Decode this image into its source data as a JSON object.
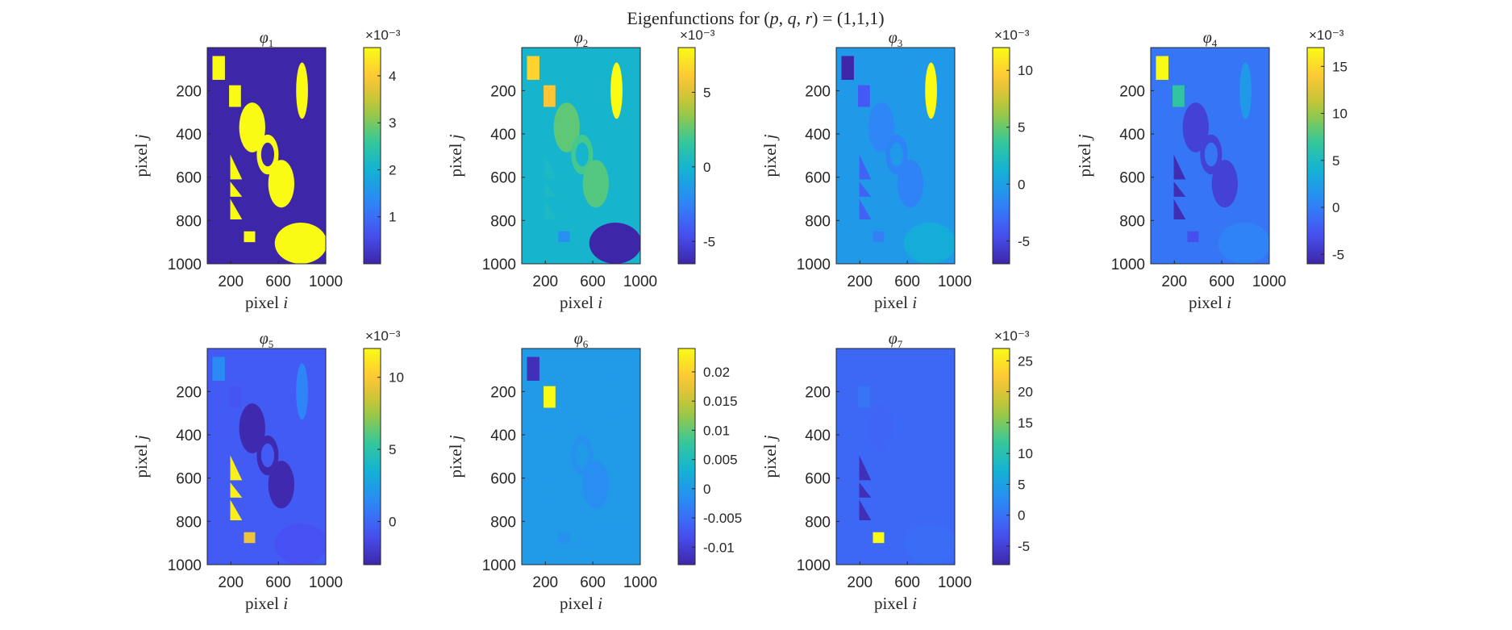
{
  "figure": {
    "title": "Eigenfunctions for (p, q, r) = (1,1,1)",
    "title_parts": [
      "Eigenfunctions for ",
      "p",
      ", ",
      "q",
      ", ",
      "r",
      ") = (1,1,1)"
    ]
  },
  "chart_data": [
    {
      "type": "heatmap",
      "title": "φ₁",
      "title_base": "φ",
      "title_sub": "1",
      "xlabel": "pixel i",
      "ylabel": "pixel j",
      "xticks": [
        "200",
        "600",
        "1000"
      ],
      "yticks": [
        "200",
        "400",
        "600",
        "800",
        "1000"
      ],
      "xlim": [
        1,
        1000
      ],
      "ylim": [
        1,
        1000
      ],
      "y_reversed": true,
      "colorbar": {
        "exponent": "×10⁻³",
        "range": [
          0.0,
          4.6
        ],
        "ticks": [
          1,
          2,
          3,
          4
        ],
        "tick_labels": [
          "1",
          "2",
          "3",
          "4"
        ]
      },
      "regions": {
        "background": 0.0,
        "rect1": 4.6,
        "rect2": 4.6,
        "ellipse_top": 4.6,
        "ellipse_big": 4.6,
        "ring": 4.6,
        "ring_hole": 0.0,
        "ellipse_mid": 4.6,
        "triangles": 4.6,
        "small_rect": 4.6,
        "ellipse_bottom": 4.6
      }
    },
    {
      "type": "heatmap",
      "title": "φ₂",
      "title_base": "φ",
      "title_sub": "2",
      "xlabel": "pixel i",
      "ylabel": "pixel j",
      "xticks": [
        "200",
        "600",
        "1000"
      ],
      "yticks": [
        "200",
        "400",
        "600",
        "800",
        "1000"
      ],
      "xlim": [
        1,
        1000
      ],
      "ylim": [
        1,
        1000
      ],
      "y_reversed": true,
      "colorbar": {
        "exponent": "×10⁻³",
        "range": [
          -6.5,
          8.0
        ],
        "ticks": [
          -5,
          0,
          5
        ],
        "tick_labels": [
          "-5",
          "0",
          "5"
        ]
      },
      "regions": {
        "background": 0.0,
        "rect1": 6.5,
        "rect2": 6.0,
        "ellipse_top": 8.0,
        "ellipse_big": 2.5,
        "ring": 2.0,
        "ring_hole": 0.0,
        "ellipse_mid": 2.3,
        "triangles": 0.3,
        "small_rect": -2.0,
        "ellipse_bottom": -6.5
      }
    },
    {
      "type": "heatmap",
      "title": "φ₃",
      "title_base": "φ",
      "title_sub": "3",
      "xlabel": "pixel i",
      "ylabel": "pixel j",
      "xticks": [
        "200",
        "600",
        "1000"
      ],
      "yticks": [
        "200",
        "400",
        "600",
        "800",
        "1000"
      ],
      "xlim": [
        1,
        1000
      ],
      "ylim": [
        1,
        1000
      ],
      "y_reversed": true,
      "colorbar": {
        "exponent": "×10⁻³",
        "range": [
          -7.0,
          12.0
        ],
        "ticks": [
          -5,
          0,
          5,
          10
        ],
        "tick_labels": [
          "-5",
          "0",
          "5",
          "10"
        ]
      },
      "regions": {
        "background": -0.4,
        "rect1": -7.0,
        "rect2": -4.0,
        "ellipse_top": 12.0,
        "ellipse_big": -1.6,
        "ring": -1.8,
        "ring_hole": -0.4,
        "ellipse_mid": -1.8,
        "triangles": -3.5,
        "small_rect": -2.0,
        "ellipse_bottom": 0.8
      }
    },
    {
      "type": "heatmap",
      "title": "φ₄",
      "title_base": "φ",
      "title_sub": "4",
      "xlabel": "pixel i",
      "ylabel": "pixel j",
      "xticks": [
        "200",
        "600",
        "1000"
      ],
      "yticks": [
        "200",
        "400",
        "600",
        "800",
        "1000"
      ],
      "xlim": [
        1,
        1000
      ],
      "ylim": [
        1,
        1000
      ],
      "y_reversed": true,
      "colorbar": {
        "exponent": "×10⁻³",
        "range": [
          -6.0,
          17.0
        ],
        "ticks": [
          -5,
          0,
          5,
          10,
          15
        ],
        "tick_labels": [
          "-5",
          "0",
          "5",
          "10",
          "15"
        ]
      },
      "regions": {
        "background": -0.5,
        "rect1": 17.0,
        "rect2": 6.5,
        "ellipse_top": 2.0,
        "ellipse_big": -4.0,
        "ring": -4.0,
        "ring_hole": -0.5,
        "ellipse_mid": -4.0,
        "triangles": -5.5,
        "small_rect": -3.0,
        "ellipse_bottom": 0.3
      }
    },
    {
      "type": "heatmap",
      "title": "φ₅",
      "title_base": "φ",
      "title_sub": "5",
      "xlabel": "pixel i",
      "ylabel": "pixel j",
      "xticks": [
        "200",
        "600",
        "1000"
      ],
      "yticks": [
        "200",
        "400",
        "600",
        "800",
        "1000"
      ],
      "xlim": [
        1,
        1000
      ],
      "ylim": [
        1,
        1000
      ],
      "y_reversed": true,
      "colorbar": {
        "exponent": "×10⁻³",
        "range": [
          -3.0,
          12.0
        ],
        "ticks": [
          0,
          5,
          10
        ],
        "tick_labels": [
          "0",
          "5",
          "10"
        ]
      },
      "regions": {
        "background": -0.5,
        "rect1": 1.5,
        "rect2": -0.8,
        "ellipse_top": 1.2,
        "ellipse_big": -2.8,
        "ring": -2.8,
        "ring_hole": -0.5,
        "ellipse_mid": -2.8,
        "triangles": 11.5,
        "small_rect": 9.5,
        "ellipse_bottom": -0.9
      }
    },
    {
      "type": "heatmap",
      "title": "φ₆",
      "title_base": "φ",
      "title_sub": "6",
      "xlabel": "pixel i",
      "ylabel": "pixel j",
      "xticks": [
        "200",
        "600",
        "1000"
      ],
      "yticks": [
        "200",
        "400",
        "600",
        "800",
        "1000"
      ],
      "xlim": [
        1,
        1000
      ],
      "ylim": [
        1,
        1000
      ],
      "y_reversed": true,
      "colorbar": {
        "exponent": "",
        "range": [
          -0.013,
          0.024
        ],
        "ticks": [
          -0.01,
          -0.005,
          0,
          0.005,
          0.01,
          0.015,
          0.02
        ],
        "tick_labels": [
          "-0.01",
          "-0.005",
          "0",
          "0.005",
          "0.01",
          "0.015",
          "0.02"
        ]
      },
      "regions": {
        "background": 0.0,
        "rect1": -0.012,
        "rect2": 0.024,
        "ellipse_top": 0.0,
        "ellipse_big": 0.0,
        "ring": -0.001,
        "ring_hole": 0.0,
        "ellipse_mid": -0.0015,
        "triangles": 0.0,
        "small_rect": -0.001,
        "ellipse_bottom": 0.0
      }
    },
    {
      "type": "heatmap",
      "title": "φ₇",
      "title_base": "φ",
      "title_sub": "7",
      "xlabel": "pixel i",
      "ylabel": "pixel j",
      "xticks": [
        "200",
        "600",
        "1000"
      ],
      "yticks": [
        "200",
        "400",
        "600",
        "800",
        "1000"
      ],
      "xlim": [
        1,
        1000
      ],
      "ylim": [
        1,
        1000
      ],
      "y_reversed": true,
      "colorbar": {
        "exponent": "×10⁻³",
        "range": [
          -8.0,
          27.0
        ],
        "ticks": [
          -5,
          0,
          5,
          10,
          15,
          20,
          25
        ],
        "tick_labels": [
          "-5",
          "0",
          "5",
          "10",
          "15",
          "20",
          "25"
        ]
      },
      "regions": {
        "background": -1.0,
        "rect1": -1.0,
        "rect2": 0.3,
        "ellipse_top": -1.0,
        "ellipse_big": -1.2,
        "ring": -1.0,
        "ring_hole": -1.0,
        "ellipse_mid": -1.0,
        "triangles": -7.0,
        "small_rect": 27.0,
        "ellipse_bottom": -0.6
      }
    }
  ]
}
